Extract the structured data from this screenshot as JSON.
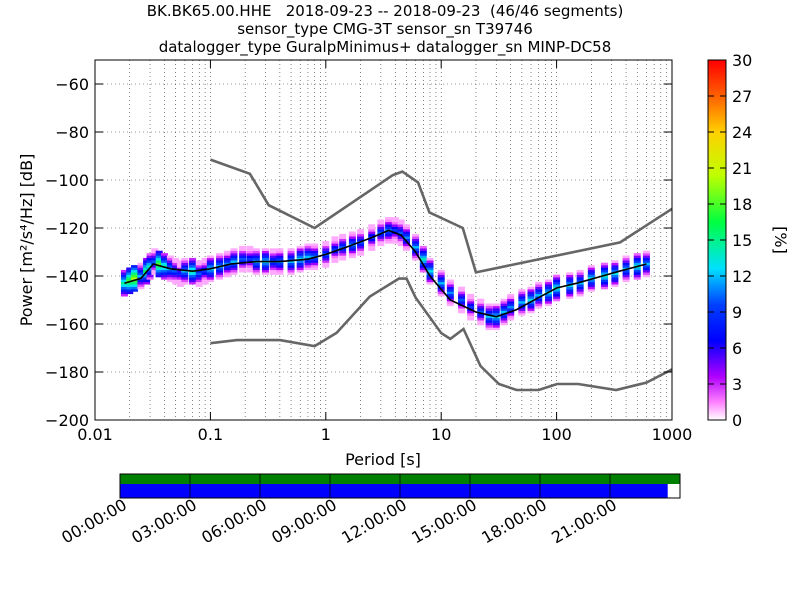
{
  "title_lines": [
    "BK.BK65.00.HHE   2018-09-23 -- 2018-09-23  (46/46 segments)",
    "sensor_type CMG-3T sensor_sn T39746",
    "datalogger_type GuralpMinimus+ datalogger_sn MINP-DC58"
  ],
  "colorbar": {
    "label": "[%]",
    "ticks": [
      0,
      3,
      6,
      9,
      12,
      15,
      18,
      21,
      24,
      27,
      30
    ],
    "range": [
      0,
      30
    ]
  },
  "timeline": {
    "tick_labels": [
      "00:00:00",
      "03:00:00",
      "06:00:00",
      "09:00:00",
      "12:00:00",
      "15:00:00",
      "18:00:00",
      "21:00:00"
    ],
    "top_bar_color": "#008000",
    "bottom_bar_color": "#0000ff",
    "coverage_fraction": 0.978
  },
  "chart_data": {
    "type": "heatmap",
    "xlabel": "Period [s]",
    "ylabel": "Power [m²/s⁴/Hz] [dB]",
    "xscale": "log",
    "xlim": [
      0.01,
      1000
    ],
    "ylim": [
      -200,
      -50
    ],
    "xticks": [
      0.01,
      0.1,
      1,
      10,
      100,
      1000
    ],
    "xtick_labels": [
      "0.01",
      "0.1",
      "1",
      "10",
      "100",
      "1000"
    ],
    "yticks": [
      -200,
      -180,
      -160,
      -140,
      -120,
      -100,
      -80,
      -60
    ],
    "grid": true,
    "colormap": "pqlx",
    "series": [
      {
        "kind": "mode",
        "color": "#000000",
        "x": [
          0.018,
          0.025,
          0.032,
          0.045,
          0.07,
          0.1,
          0.15,
          0.25,
          0.4,
          0.7,
          1.0,
          1.5,
          2.5,
          3.5,
          4.5,
          6,
          8,
          12,
          20,
          30,
          45,
          70,
          100,
          150,
          250,
          350,
          600
        ],
        "y": [
          -143,
          -141,
          -135,
          -137,
          -138,
          -137,
          -135,
          -134,
          -134,
          -133,
          -131,
          -128,
          -124,
          -121,
          -123,
          -130,
          -140,
          -150,
          -155,
          -157,
          -154,
          -149,
          -145,
          -143,
          -140,
          -138,
          -135
        ]
      },
      {
        "kind": "NHNM",
        "color": "#666666",
        "x": [
          0.1,
          0.22,
          0.32,
          0.8,
          3.8,
          4.6,
          6.3,
          7.9,
          15.4,
          20,
          354.8,
          1000
        ],
        "y": [
          -91.5,
          -97.4,
          -110.5,
          -120,
          -98,
          -96.5,
          -101,
          -113.5,
          -120,
          -138.5,
          -126,
          -112
        ]
      },
      {
        "kind": "NLNM",
        "color": "#666666",
        "x": [
          0.1,
          0.17,
          0.4,
          0.8,
          1.24,
          2.4,
          4.3,
          5,
          6,
          10,
          12,
          15.6,
          21.9,
          31.6,
          45,
          70,
          101,
          154,
          328,
          600,
          1000
        ],
        "y": [
          -168,
          -166.7,
          -166.7,
          -169.2,
          -163.7,
          -148.6,
          -141.1,
          -141.1,
          -149,
          -163.8,
          -166.2,
          -162.1,
          -177.5,
          -185,
          -187.5,
          -187.5,
          -185,
          -185,
          -187.5,
          -184.4,
          -178.9
        ]
      }
    ],
    "heatmap_cells": [
      [
        0.018,
        -143,
        15
      ],
      [
        0.02,
        -142,
        18
      ],
      [
        0.022,
        -141,
        20
      ],
      [
        0.025,
        -140,
        12
      ],
      [
        0.028,
        -138,
        16
      ],
      [
        0.03,
        -136,
        14
      ],
      [
        0.033,
        -134,
        10
      ],
      [
        0.036,
        -135,
        18
      ],
      [
        0.04,
        -136,
        15
      ],
      [
        0.045,
        -137,
        12
      ],
      [
        0.05,
        -138,
        10
      ],
      [
        0.055,
        -139,
        8
      ],
      [
        0.06,
        -138,
        12
      ],
      [
        0.07,
        -138,
        15
      ],
      [
        0.08,
        -139,
        10
      ],
      [
        0.09,
        -138,
        9
      ],
      [
        0.1,
        -137,
        13
      ],
      [
        0.12,
        -136,
        12
      ],
      [
        0.14,
        -135,
        11
      ],
      [
        0.16,
        -134,
        12
      ],
      [
        0.19,
        -133,
        10
      ],
      [
        0.22,
        -133,
        9
      ],
      [
        0.25,
        -134,
        12
      ],
      [
        0.3,
        -134,
        13
      ],
      [
        0.35,
        -134,
        10
      ],
      [
        0.4,
        -134,
        11
      ],
      [
        0.5,
        -134,
        12
      ],
      [
        0.6,
        -133,
        13
      ],
      [
        0.7,
        -132,
        12
      ],
      [
        0.8,
        -132,
        11
      ],
      [
        1.0,
        -131,
        10
      ],
      [
        1.2,
        -129,
        9
      ],
      [
        1.4,
        -128,
        10
      ],
      [
        1.7,
        -127,
        11
      ],
      [
        2.0,
        -126,
        10
      ],
      [
        2.5,
        -124,
        9
      ],
      [
        3.0,
        -122,
        10
      ],
      [
        3.5,
        -121,
        11
      ],
      [
        4.0,
        -121,
        9
      ],
      [
        4.5,
        -122,
        10
      ],
      [
        5.0,
        -124,
        11
      ],
      [
        6.0,
        -128,
        12
      ],
      [
        7.0,
        -133,
        14
      ],
      [
        8.0,
        -138,
        13
      ],
      [
        10,
        -143,
        12
      ],
      [
        12,
        -147,
        11
      ],
      [
        15,
        -150,
        10
      ],
      [
        18,
        -153,
        9
      ],
      [
        22,
        -155,
        10
      ],
      [
        26,
        -157,
        12
      ],
      [
        30,
        -157,
        13
      ],
      [
        35,
        -155,
        12
      ],
      [
        40,
        -153,
        11
      ],
      [
        50,
        -151,
        12
      ],
      [
        60,
        -150,
        13
      ],
      [
        70,
        -148,
        12
      ],
      [
        85,
        -147,
        13
      ],
      [
        100,
        -145,
        14
      ],
      [
        130,
        -144,
        13
      ],
      [
        160,
        -143,
        12
      ],
      [
        200,
        -141,
        13
      ],
      [
        260,
        -140,
        14
      ],
      [
        320,
        -139,
        13
      ],
      [
        400,
        -137,
        12
      ],
      [
        500,
        -136,
        14
      ],
      [
        600,
        -135,
        12
      ]
    ]
  }
}
